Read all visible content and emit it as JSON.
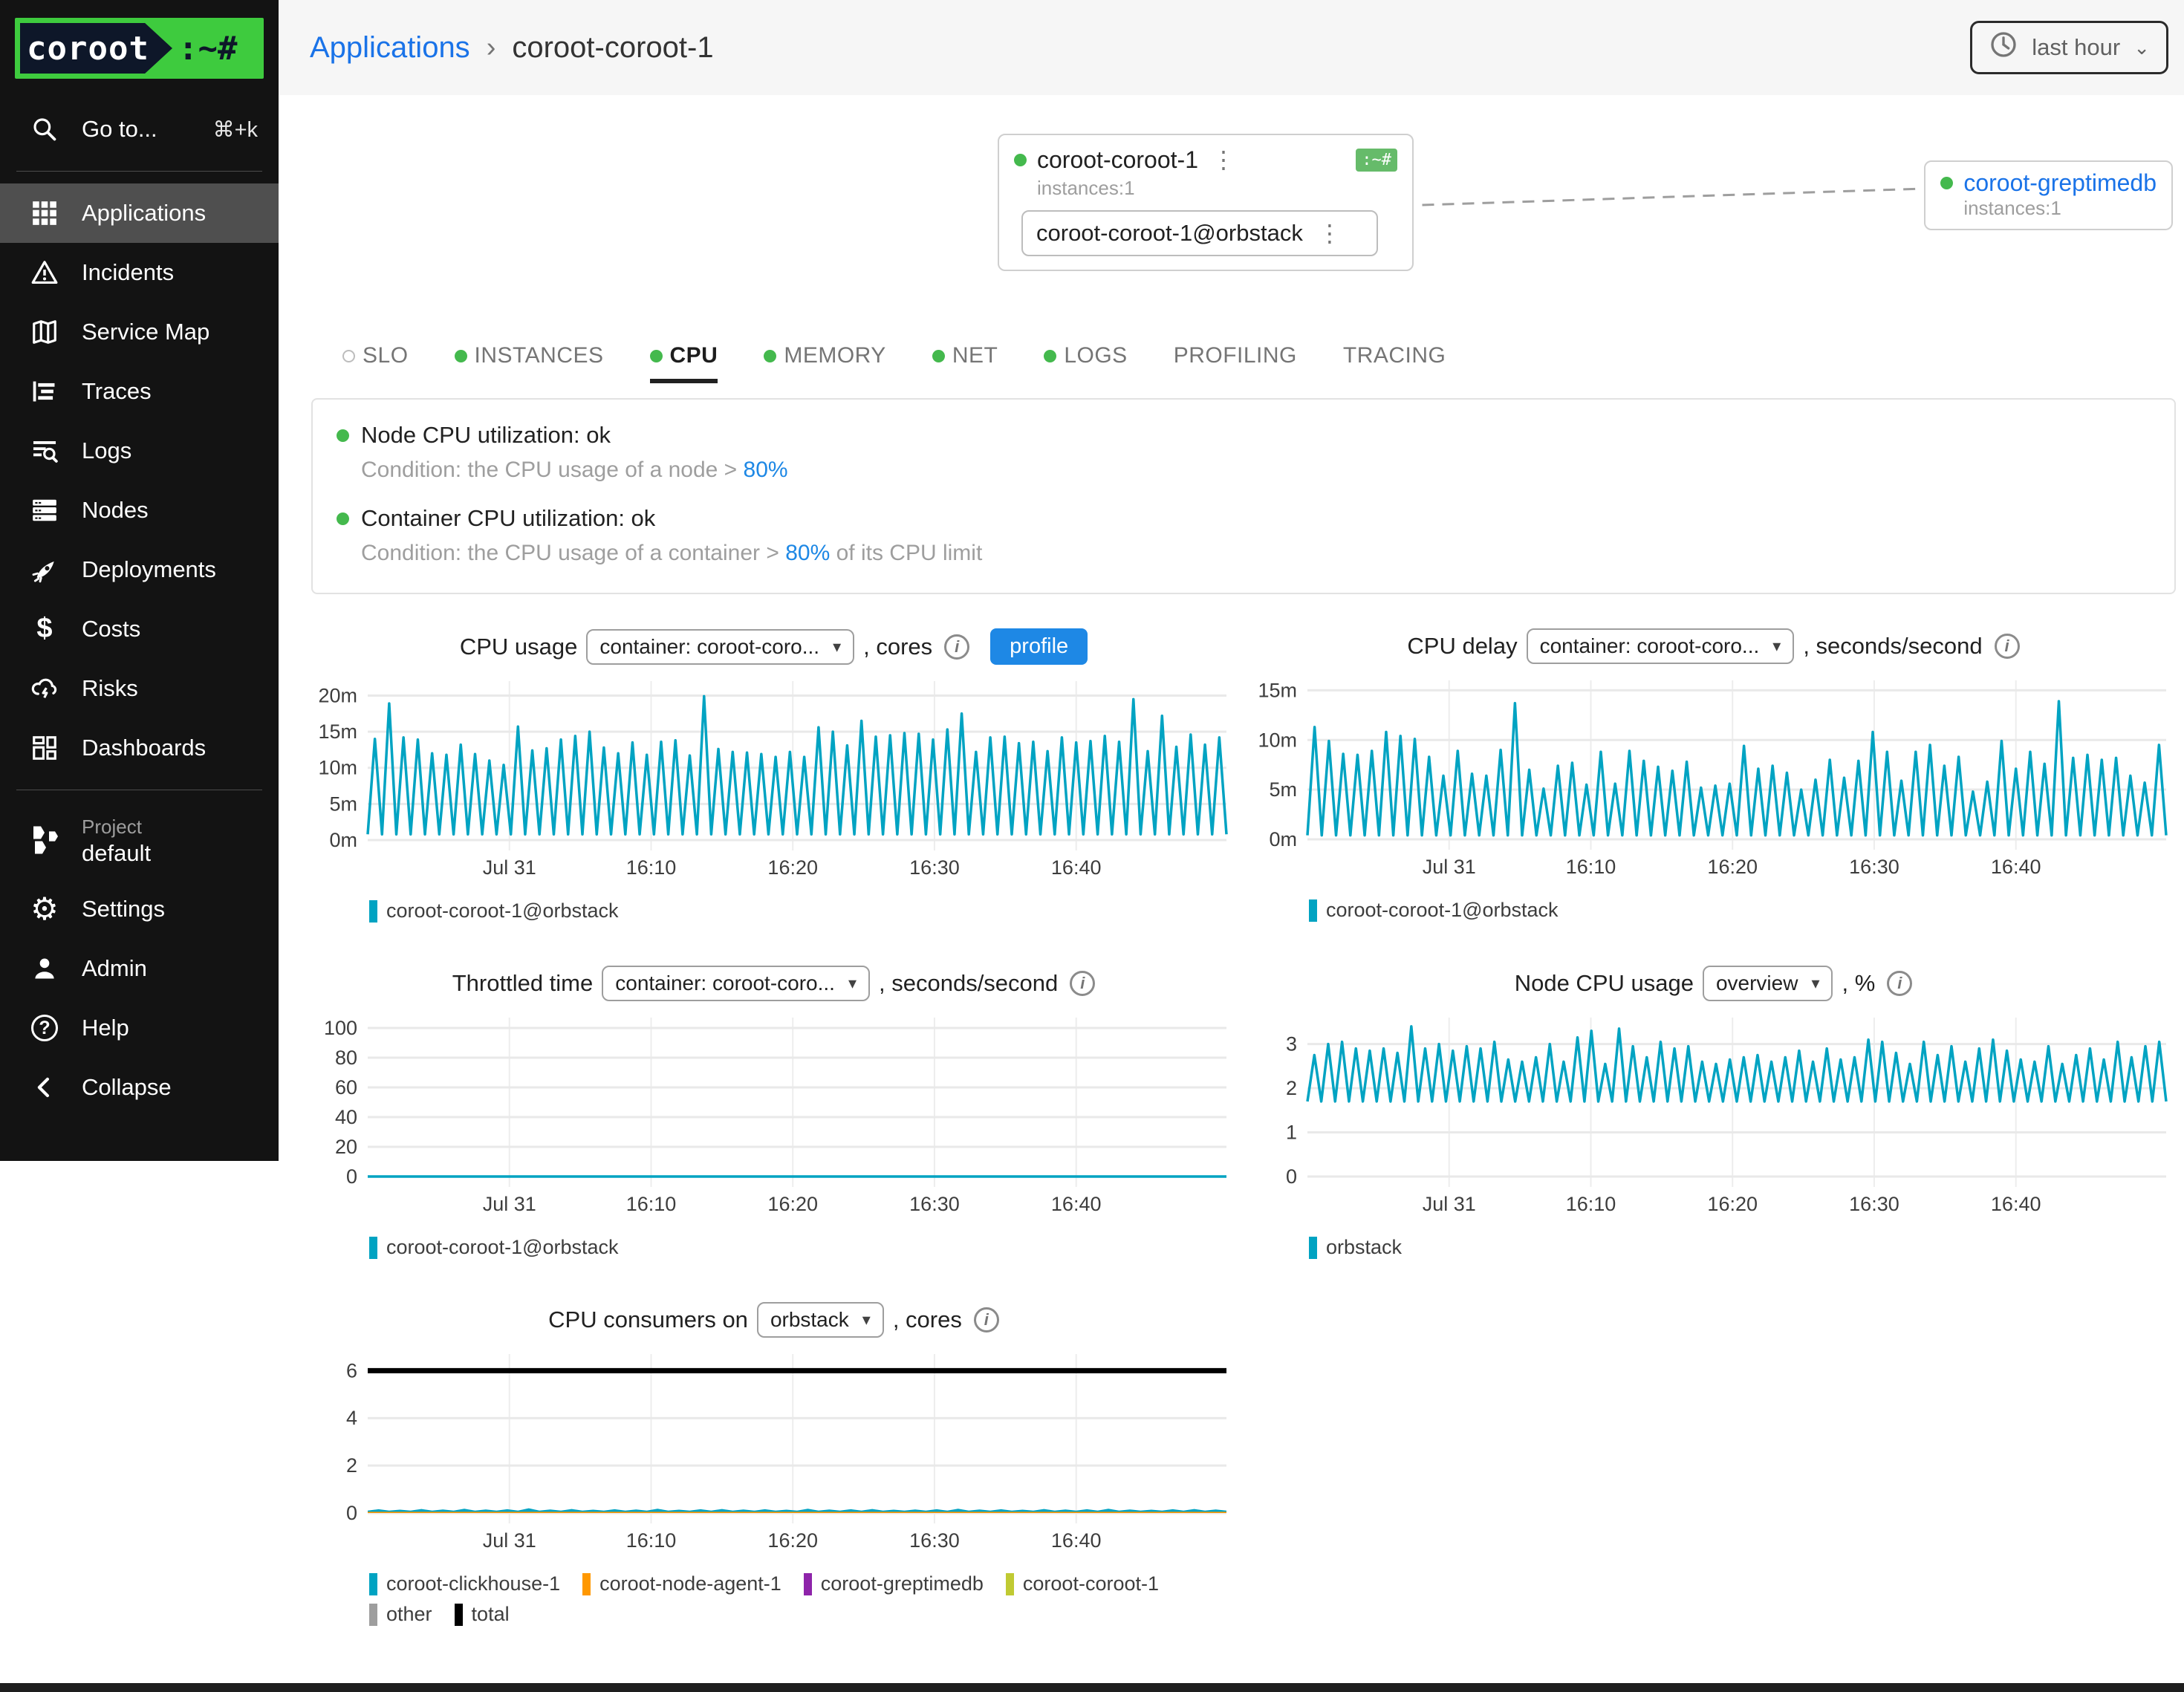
{
  "colors": {
    "accent_blue": "#1a73e8",
    "ok_green": "#44b94d",
    "badge_green": "#66bb6a",
    "series_teal": "#00a3c2",
    "logo_green": "#3ecb3e",
    "logo_navy": "#0e1729"
  },
  "sidebar": {
    "logo_text": "coroot",
    "logo_suffix": ":~#",
    "search": {
      "label": "Go to...",
      "shortcut": "⌘+k"
    },
    "items": [
      {
        "label": "Applications",
        "icon": "grid-icon",
        "active": true
      },
      {
        "label": "Incidents",
        "icon": "alert-triangle-icon",
        "active": false
      },
      {
        "label": "Service Map",
        "icon": "map-icon",
        "active": false
      },
      {
        "label": "Traces",
        "icon": "traces-icon",
        "active": false
      },
      {
        "label": "Logs",
        "icon": "logs-icon",
        "active": false
      },
      {
        "label": "Nodes",
        "icon": "servers-icon",
        "active": false
      },
      {
        "label": "Deployments",
        "icon": "rocket-icon",
        "active": false
      },
      {
        "label": "Costs",
        "icon": "dollar-icon",
        "active": false
      },
      {
        "label": "Risks",
        "icon": "storm-cloud-icon",
        "active": false
      },
      {
        "label": "Dashboards",
        "icon": "dashboards-icon",
        "active": false
      }
    ],
    "project": {
      "label": "Project",
      "name": "default"
    },
    "settings_label": "Settings",
    "admin_label": "Admin",
    "help_label": "Help",
    "collapse_label": "Collapse"
  },
  "header": {
    "breadcrumb_root": "Applications",
    "breadcrumb_separator": "›",
    "breadcrumb_current": "coroot-coroot-1",
    "time_range": "last hour"
  },
  "service_map": {
    "app": {
      "name": "coroot-coroot-1",
      "badge": ":~#",
      "instances_label": "instances:1",
      "instance": "coroot-coroot-1@orbstack"
    },
    "upstream": {
      "name": "coroot-greptimedb",
      "instances_label": "instances:1"
    }
  },
  "tabs": [
    {
      "label": "SLO",
      "dot": "empty",
      "active": false
    },
    {
      "label": "INSTANCES",
      "dot": "ok",
      "active": false
    },
    {
      "label": "CPU",
      "dot": "ok",
      "active": true
    },
    {
      "label": "MEMORY",
      "dot": "ok",
      "active": false
    },
    {
      "label": "NET",
      "dot": "ok",
      "active": false
    },
    {
      "label": "LOGS",
      "dot": "ok",
      "active": false
    },
    {
      "label": "PROFILING",
      "dot": "none",
      "active": false
    },
    {
      "label": "TRACING",
      "dot": "none",
      "active": false
    }
  ],
  "checks": [
    {
      "title": "Node CPU utilization: ok",
      "condition_prefix": "Condition: the CPU usage of a node >",
      "threshold": "80%",
      "condition_suffix": ""
    },
    {
      "title": "Container CPU utilization: ok",
      "condition_prefix": "Condition: the CPU usage of a container >",
      "threshold": "80%",
      "condition_suffix": "of its CPU limit"
    }
  ],
  "chart_data": [
    {
      "type": "line",
      "title": "CPU usage",
      "selector": "container: coroot-coro...",
      "unit_suffix": ", cores",
      "profile_label": "profile",
      "x_ticks": [
        "Jul 31",
        "16:10",
        "16:20",
        "16:30",
        "16:40"
      ],
      "y_tick_vals": [
        0,
        5,
        10,
        15,
        20
      ],
      "y_tick_labels": [
        "0m",
        "5m",
        "10m",
        "15m",
        "20m"
      ],
      "ymax": 22,
      "unit_note": "milli-cores",
      "series": [
        {
          "name": "coroot-coroot-1@orbstack",
          "color": "#00a3c2",
          "low": 0.8,
          "peaks": [
            14,
            18.9,
            14.2,
            13.9,
            12,
            11.8,
            13.2,
            11.9,
            11,
            10.4,
            15.7,
            12.4,
            12.7,
            13.9,
            14.4,
            15,
            12.8,
            12,
            13.5,
            11.8,
            13.6,
            13.8,
            11.7,
            19.9,
            12.6,
            12.2,
            12.1,
            11.9,
            11.5,
            12.2,
            11.5,
            15.6,
            15,
            13.1,
            16.5,
            14.3,
            14.5,
            14.8,
            14.7,
            13.9,
            15.3,
            17.5,
            12.2,
            14.2,
            14.3,
            13.4,
            13.6,
            12.3,
            14.2,
            13.5,
            13.7,
            14.4,
            13.6,
            19.5,
            12.3,
            17.2,
            12.9,
            14.6,
            13.2,
            14.2
          ]
        }
      ],
      "legend": [
        {
          "label": "coroot-coroot-1@orbstack",
          "color": "#00a3c2"
        }
      ]
    },
    {
      "type": "line",
      "title": "CPU delay",
      "selector": "container: coroot-coro...",
      "unit_suffix": ", seconds/second",
      "x_ticks": [
        "Jul 31",
        "16:10",
        "16:20",
        "16:30",
        "16:40"
      ],
      "y_tick_vals": [
        0,
        5,
        10,
        15
      ],
      "y_tick_labels": [
        "0m",
        "5m",
        "10m",
        "15m"
      ],
      "ymax": 16,
      "unit_note": "milli-seconds/second",
      "series": [
        {
          "name": "coroot-coroot-1@orbstack",
          "color": "#00a3c2",
          "low": 0.4,
          "peaks": [
            11.3,
            9.9,
            8.6,
            8.5,
            8.9,
            10.8,
            10.4,
            10.1,
            8.3,
            6.4,
            8.9,
            6.6,
            6.4,
            9,
            13.7,
            7,
            5.1,
            7.4,
            7.7,
            5.5,
            8.8,
            5.6,
            8.9,
            7.9,
            7.3,
            6.9,
            7.8,
            5.2,
            5.4,
            5.6,
            9.4,
            7.1,
            7.4,
            6.7,
            5,
            6,
            8,
            6.2,
            7.9,
            10.8,
            8.8,
            5.9,
            8.8,
            9.5,
            7.4,
            8.3,
            4.8,
            5.8,
            9.9,
            7.1,
            8.8,
            7.6,
            13.9,
            8.2,
            8.5,
            8,
            8.2,
            6.4,
            5.7,
            9.5
          ]
        }
      ],
      "legend": [
        {
          "label": "coroot-coroot-1@orbstack",
          "color": "#00a3c2"
        }
      ]
    },
    {
      "type": "line",
      "title": "Throttled time",
      "selector": "container: coroot-coro...",
      "unit_suffix": ", seconds/second",
      "x_ticks": [
        "Jul 31",
        "16:10",
        "16:20",
        "16:30",
        "16:40"
      ],
      "y_tick_vals": [
        0,
        20,
        40,
        60,
        80,
        100
      ],
      "y_tick_labels": [
        "0",
        "20",
        "40",
        "60",
        "80",
        "100"
      ],
      "ymax": 107,
      "series": [
        {
          "name": "coroot-coroot-1@orbstack",
          "color": "#00a3c2",
          "constant": 0
        }
      ],
      "legend": [
        {
          "label": "coroot-coroot-1@orbstack",
          "color": "#00a3c2"
        }
      ]
    },
    {
      "type": "line",
      "title": "Node CPU usage",
      "selector": "overview",
      "unit_suffix": ", %",
      "x_ticks": [
        "Jul 31",
        "16:10",
        "16:20",
        "16:30",
        "16:40"
      ],
      "y_tick_vals": [
        0,
        1,
        2,
        3
      ],
      "y_tick_labels": [
        "0",
        "1",
        "2",
        "3"
      ],
      "ymax": 3.6,
      "series": [
        {
          "name": "orbstack",
          "color": "#00a3c2",
          "low": 1.7,
          "peaks": [
            2.75,
            3,
            3.05,
            2.9,
            2.85,
            2.9,
            2.8,
            3.4,
            2.9,
            3,
            2.85,
            2.95,
            2.9,
            3.05,
            2.65,
            2.6,
            2.7,
            3,
            2.6,
            3.15,
            3.3,
            2.55,
            3.35,
            2.95,
            2.7,
            3.05,
            2.9,
            2.95,
            2.6,
            2.55,
            2.65,
            2.7,
            2.75,
            2.6,
            2.7,
            2.85,
            2.6,
            2.9,
            2.65,
            2.7,
            3.1,
            3.05,
            2.8,
            2.55,
            3.05,
            2.75,
            2.95,
            2.6,
            2.9,
            3.1,
            2.85,
            2.65,
            2.6,
            2.95,
            2.55,
            2.75,
            2.9,
            2.65,
            3.05,
            2.7,
            2.95,
            3.05
          ]
        }
      ],
      "legend": [
        {
          "label": "orbstack",
          "color": "#00a3c2"
        }
      ]
    },
    {
      "type": "line",
      "title": "CPU consumers on",
      "selector": "orbstack",
      "unit_suffix": ", cores",
      "x_ticks": [
        "Jul 31",
        "16:10",
        "16:20",
        "16:30",
        "16:40"
      ],
      "y_tick_vals": [
        0,
        2,
        4,
        6
      ],
      "y_tick_labels": [
        "0",
        "2",
        "4",
        "6"
      ],
      "ymax": 6.7,
      "series": [
        {
          "name": "coroot-clickhouse-1",
          "color": "#00a3c2",
          "low": 0.1,
          "fill": true,
          "peaks": [
            0.16,
            0.14,
            0.17,
            0.15,
            0.18,
            0.15,
            0.16,
            0.2,
            0.15,
            0.17,
            0.14,
            0.16,
            0.15,
            0.18,
            0.14,
            0.16,
            0.17,
            0.15,
            0.16,
            0.14,
            0.18,
            0.15,
            0.16,
            0.17,
            0.14,
            0.15,
            0.16,
            0.18,
            0.15,
            0.16,
            0.14,
            0.17,
            0.15,
            0.16,
            0.18,
            0.15,
            0.14,
            0.16,
            0.17,
            0.15
          ]
        },
        {
          "name": "coroot-node-agent-1",
          "color": "#ff9800",
          "constant": 0.05,
          "fill": true
        },
        {
          "name": "total",
          "color": "#000000",
          "constant": 6,
          "width": 7
        }
      ],
      "legend": [
        {
          "label": "coroot-clickhouse-1",
          "color": "#00a3c2"
        },
        {
          "label": "coroot-node-agent-1",
          "color": "#ff9800"
        },
        {
          "label": "coroot-greptimedb",
          "color": "#8e24aa"
        },
        {
          "label": "coroot-coroot-1",
          "color": "#c0ca33"
        },
        {
          "label": "other",
          "color": "#9e9e9e"
        },
        {
          "label": "total",
          "color": "#000000"
        }
      ]
    }
  ]
}
